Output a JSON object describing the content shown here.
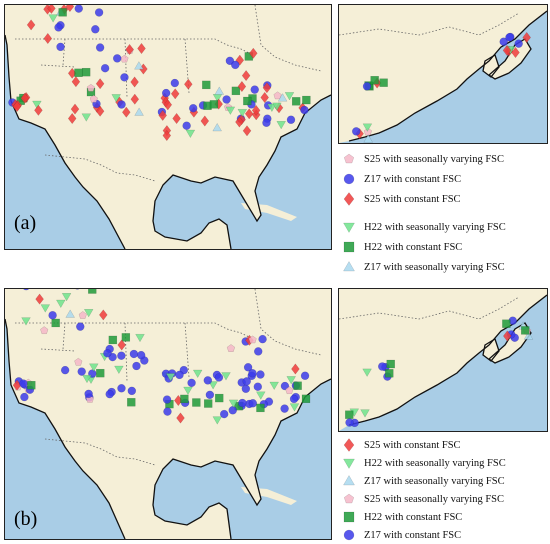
{
  "panels": [
    {
      "label": "(a)",
      "legend": [
        {
          "text": "S25 with seasonally varying FSC",
          "marker": "pentagon",
          "color": "#f4b7c8"
        },
        {
          "text": "Z17 with constant FSC",
          "marker": "circle",
          "color": "#3b3bea"
        },
        {
          "text": "S25 with constant FSC",
          "marker": "diamond",
          "color": "#ef3b3b"
        },
        {
          "text": "H22 with seasonally varying FSC",
          "marker": "triangle-down",
          "color": "#6ee38c"
        },
        {
          "text": "H22 with constant FSC",
          "marker": "square",
          "color": "#1f9a3a"
        },
        {
          "text": "Z17 with seasonally varying FSC",
          "marker": "triangle-up",
          "color": "#a9d8ee"
        }
      ]
    },
    {
      "label": "(b)",
      "legend": [
        {
          "text": "S25 with constant FSC",
          "marker": "diamond",
          "color": "#ef3b3b"
        },
        {
          "text": "H22 with seasonally varying FSC",
          "marker": "triangle-down",
          "color": "#6ee38c"
        },
        {
          "text": "Z17 with seasonally varying FSC",
          "marker": "triangle-up",
          "color": "#a9d8ee"
        },
        {
          "text": "S25 with seasonally varying FSC",
          "marker": "pentagon",
          "color": "#f4b7c8"
        },
        {
          "text": "H22 with constant FSC",
          "marker": "square",
          "color": "#1f9a3a"
        },
        {
          "text": "Z17 with constant FSC",
          "marker": "circle",
          "color": "#3b3bea"
        }
      ]
    }
  ],
  "colors": {
    "land": "#f5efd7",
    "ocean": "#a9cde6",
    "coast": "#111111",
    "border": "#666666"
  }
}
